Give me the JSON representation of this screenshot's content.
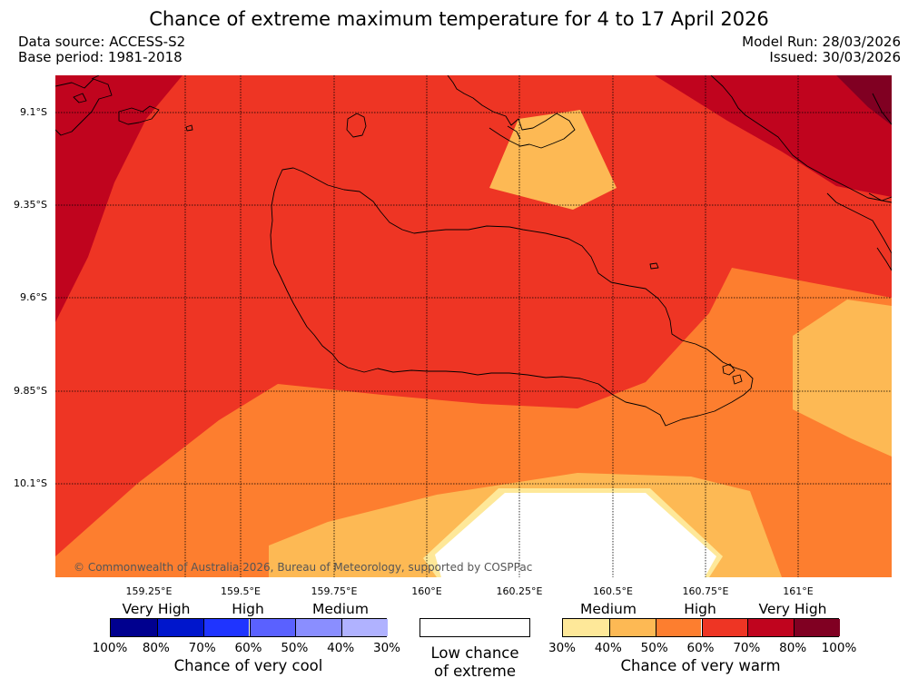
{
  "title": "Chance of extreme maximum temperature for 4 to 17 April 2026",
  "meta": {
    "data_source": "Data source: ACCESS-S2",
    "base_period": "Base period: 1981-2018",
    "model_run": "Model Run: 28/03/2026",
    "issued": "Issued: 30/03/2026"
  },
  "map": {
    "copyright": "© Commonwealth of Australia 2026, Bureau of Meteorology, supported by COSPPac",
    "lat_labels": [
      "9.1°S",
      "9.35°S",
      "9.6°S",
      "9.85°S",
      "10.1°S"
    ],
    "lon_labels": [
      "159.25°E",
      "159.5°E",
      "159.75°E",
      "160°E",
      "160.25°E",
      "160.5°E",
      "160.75°E",
      "161°E"
    ],
    "colors": {
      "warm_medium_1": "#fee899",
      "warm_medium_2": "#fdb954",
      "warm_high_1": "#fd7e2f",
      "warm_high_2": "#ee3524",
      "warm_very_high_1": "#c0041e",
      "warm_very_high_2": "#800022",
      "low": "#ffffff"
    }
  },
  "legend": {
    "cool": {
      "categories": [
        "Very High",
        "High",
        "Medium"
      ],
      "ticks": [
        "100%",
        "80%",
        "70%",
        "60%",
        "50%",
        "40%",
        "30%"
      ],
      "caption": "Chance of very cool",
      "colors": [
        "#00008f",
        "#0016cc",
        "#1f34ff",
        "#5a61ff",
        "#8a8eff",
        "#b0b2ff"
      ]
    },
    "neutral": {
      "caption_line1": "Low chance",
      "caption_line2": "of extreme",
      "color": "#ffffff"
    },
    "warm": {
      "categories": [
        "Medium",
        "High",
        "Very High"
      ],
      "ticks": [
        "30%",
        "40%",
        "50%",
        "60%",
        "70%",
        "80%",
        "100%"
      ],
      "caption": "Chance of very warm",
      "colors": [
        "#fee899",
        "#fdb954",
        "#fd7e2f",
        "#ee3524",
        "#c0041e",
        "#800022"
      ]
    }
  }
}
